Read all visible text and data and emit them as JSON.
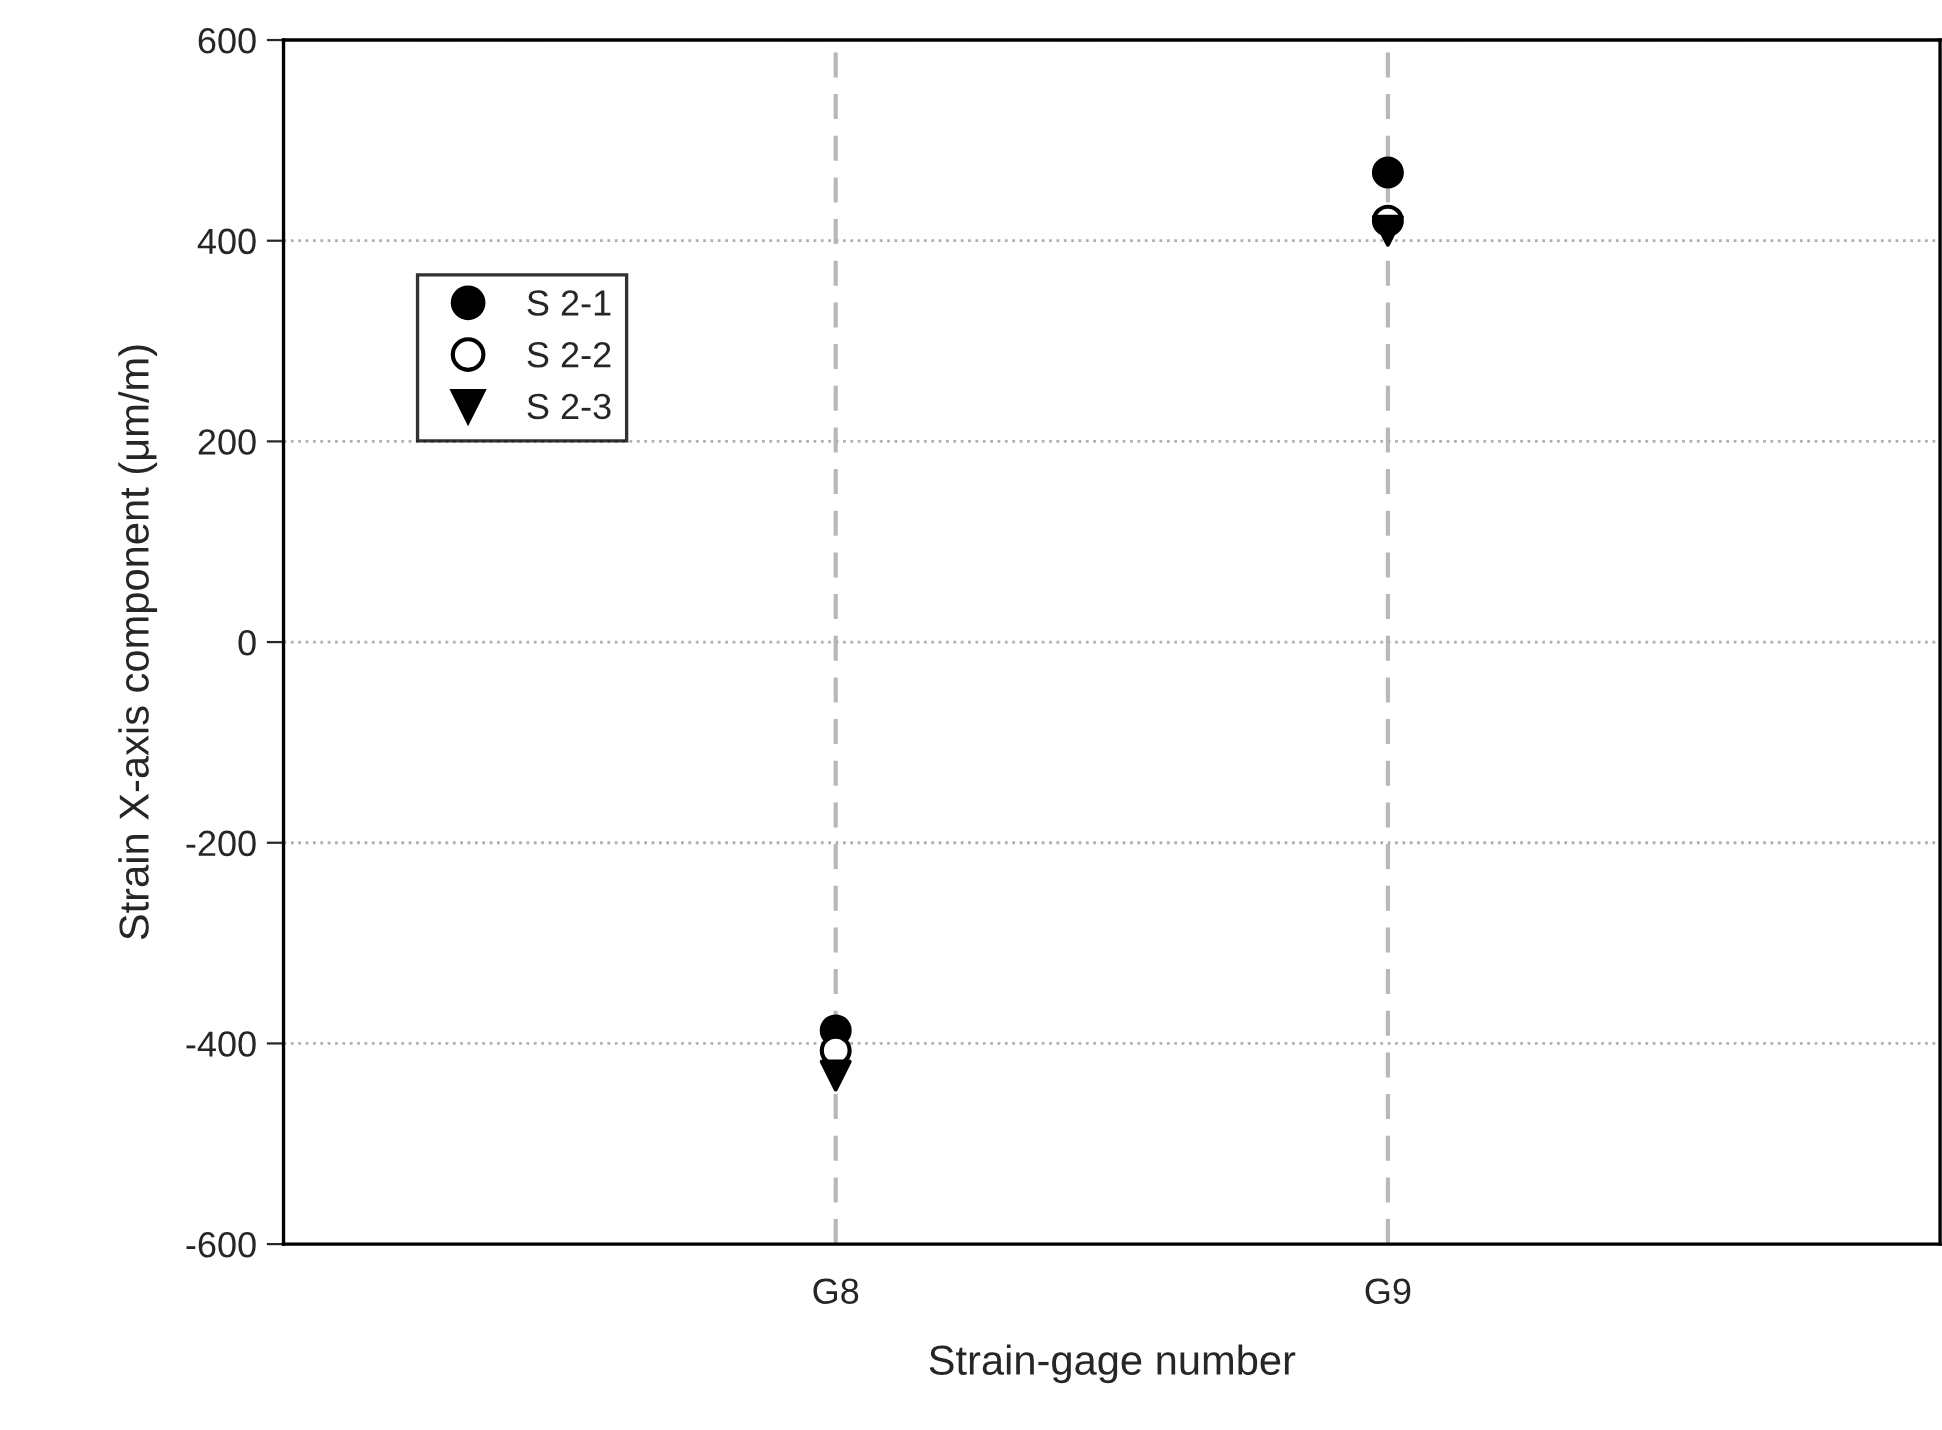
{
  "chart_data": {
    "type": "scatter",
    "xlabel": "Strain-gage number",
    "ylabel": "Strain X-axis component (μm/m)",
    "categories": [
      "G8",
      "G9"
    ],
    "series": [
      {
        "name": "S 2-1",
        "color": "#000000",
        "marker": "circle",
        "values": [
          -387,
          468
        ]
      },
      {
        "name": "S 2-2",
        "color": "#ffffff",
        "marker": "circle",
        "values": [
          -407,
          420
        ]
      },
      {
        "name": "S 2-3",
        "color": "#000000",
        "marker": "triangle",
        "values": [
          -432,
          410
        ]
      }
    ],
    "ylim": [
      -600,
      600
    ],
    "yticks": [
      -600,
      -400,
      -200,
      0,
      200,
      400,
      600
    ],
    "grid": true,
    "legend": "top left"
  }
}
